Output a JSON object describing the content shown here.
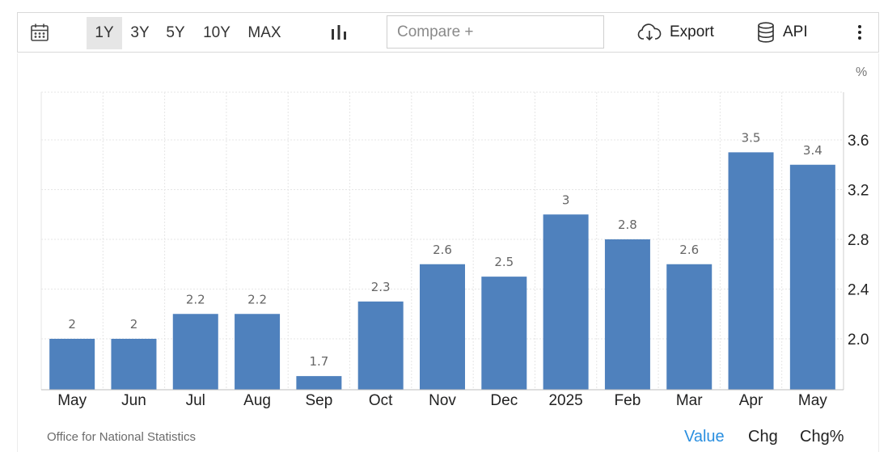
{
  "toolbar": {
    "ranges": [
      "1Y",
      "3Y",
      "5Y",
      "10Y",
      "MAX"
    ],
    "active_range": "1Y",
    "compare_placeholder": "Compare +",
    "export_label": "Export",
    "api_label": "API"
  },
  "footer": {
    "source": "Office for National Statistics",
    "tabs": [
      "Value",
      "Chg",
      "Chg%"
    ],
    "active_tab": "Value"
  },
  "colors": {
    "bar": "#4f81bd",
    "active_tab": "#2a8fe0",
    "grid": "#e6e6e6",
    "axis_text": "#222222",
    "label_text": "#666666"
  },
  "chart_data": {
    "type": "bar",
    "categories": [
      "May",
      "Jun",
      "Jul",
      "Aug",
      "Sep",
      "Oct",
      "Nov",
      "Dec",
      "2025",
      "Feb",
      "Mar",
      "Apr",
      "May"
    ],
    "values": [
      2,
      2,
      2.2,
      2.2,
      1.7,
      2.3,
      2.6,
      2.5,
      3,
      2.8,
      2.6,
      3.5,
      3.4
    ],
    "data_labels": [
      "2",
      "2",
      "2.2",
      "2.2",
      "1.7",
      "2.3",
      "2.6",
      "2.5",
      "3",
      "2.8",
      "2.6",
      "3.5",
      "3.4"
    ],
    "unit": "%",
    "y_ticks": [
      "2.0",
      "2.4",
      "2.8",
      "3.2",
      "3.6"
    ],
    "ylim": [
      1.6,
      3.8
    ],
    "y_axis_side": "right",
    "grid": true,
    "legend": "none"
  }
}
